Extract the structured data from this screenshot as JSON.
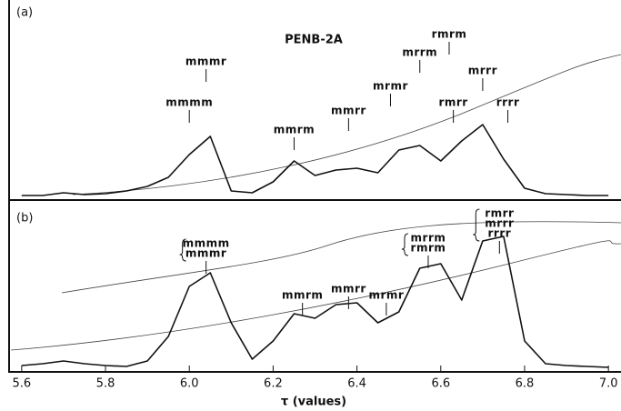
{
  "chart_data": [
    {
      "type": "line",
      "label": "(a)",
      "title": "PENB-2A",
      "x": [
        5.6,
        5.65,
        5.7,
        5.75,
        5.8,
        5.85,
        5.9,
        5.95,
        6.0,
        6.05,
        6.1,
        6.15,
        6.2,
        6.25,
        6.3,
        6.35,
        6.4,
        6.45,
        6.5,
        6.55,
        6.6,
        6.65,
        6.7,
        6.75,
        6.8,
        6.85,
        6.9,
        6.95,
        7.0
      ],
      "values": [
        0,
        0,
        3,
        1,
        2,
        5,
        10,
        20,
        45,
        65,
        5,
        3,
        15,
        38,
        22,
        28,
        30,
        25,
        50,
        55,
        38,
        60,
        78,
        40,
        8,
        2,
        1,
        0,
        0
      ],
      "color": "#111",
      "xlim": [
        5.57,
        7.03
      ],
      "ylim": [
        0,
        100
      ],
      "annotations": [
        {
          "lines": [
            "mmmm"
          ],
          "x": 6.0
        },
        {
          "lines": [
            "mmmr"
          ],
          "x": 6.04
        },
        {
          "lines": [
            "mmrm"
          ],
          "x": 6.25
        },
        {
          "lines": [
            "mmrr"
          ],
          "x": 6.38
        },
        {
          "lines": [
            "mrmr"
          ],
          "x": 6.48
        },
        {
          "lines": [
            "mrrm"
          ],
          "x": 6.55
        },
        {
          "lines": [
            "rmrm"
          ],
          "x": 6.62
        },
        {
          "lines": [
            "rmrr"
          ],
          "x": 6.63
        },
        {
          "lines": [
            "mrrr"
          ],
          "x": 6.7
        },
        {
          "lines": [
            "rrrr"
          ],
          "x": 6.76
        }
      ]
    },
    {
      "type": "line",
      "label": "(b)",
      "x": [
        5.6,
        5.65,
        5.7,
        5.75,
        5.8,
        5.85,
        5.9,
        5.95,
        6.0,
        6.05,
        6.1,
        6.15,
        6.2,
        6.25,
        6.3,
        6.35,
        6.4,
        6.45,
        6.5,
        6.55,
        6.6,
        6.65,
        6.7,
        6.75,
        6.8,
        6.85,
        6.9,
        6.95,
        7.0
      ],
      "values": [
        3,
        5,
        8,
        5,
        3,
        2,
        8,
        35,
        90,
        105,
        50,
        10,
        30,
        60,
        55,
        70,
        72,
        50,
        62,
        110,
        115,
        75,
        140,
        145,
        30,
        5,
        3,
        2,
        1
      ],
      "color": "#111",
      "xlim": [
        5.57,
        7.03
      ],
      "ylim": [
        0,
        170
      ],
      "xticks": [
        5.6,
        5.8,
        {
          "value": 6,
          "label": "6.0"
        },
        6.2,
        6.4,
        6.6,
        6.8,
        {
          "value": 7,
          "label": "7.0"
        }
      ],
      "xlabel": "τ (values)",
      "annotations": [
        {
          "lines": [
            "mmmm",
            "mmmr"
          ],
          "x": 6.04
        },
        {
          "lines": [
            "mmrm"
          ],
          "x": 6.27
        },
        {
          "lines": [
            "mmrr"
          ],
          "x": 6.38
        },
        {
          "lines": [
            "mrmr"
          ],
          "x": 6.47
        },
        {
          "lines": [
            "mrrm",
            "rmrm"
          ],
          "x": 6.57
        },
        {
          "lines": [
            "rmrr",
            "mrrr",
            "rrrr"
          ],
          "x": 6.74
        }
      ]
    }
  ]
}
